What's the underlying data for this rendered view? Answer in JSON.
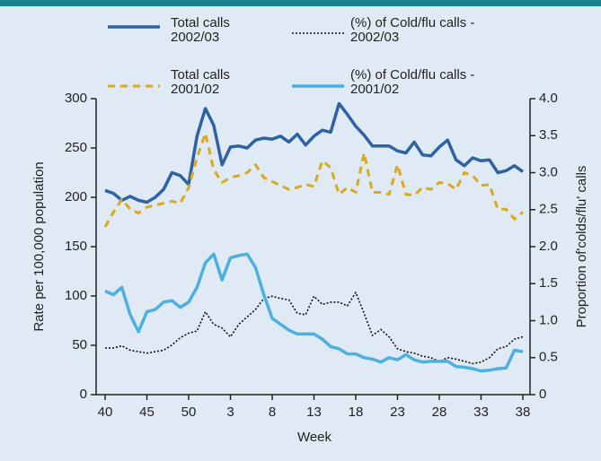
{
  "chart_data": {
    "type": "line",
    "x_label": "Week",
    "y_label": "Rate per 100,000 population",
    "y2_label": "Proportion of'colds/flu' calls",
    "categories": [
      "40",
      null,
      null,
      null,
      null,
      "45",
      null,
      null,
      null,
      null,
      "50",
      null,
      null,
      null,
      null,
      "3",
      null,
      null,
      null,
      null,
      "8",
      null,
      null,
      null,
      null,
      "13",
      null,
      null,
      null,
      null,
      "18",
      null,
      null,
      null,
      null,
      "23",
      null,
      null,
      null,
      null,
      "28",
      null,
      null,
      null,
      null,
      "33",
      null,
      null,
      null,
      null,
      "38"
    ],
    "ylim": [
      0,
      300
    ],
    "yticks": [
      0,
      50,
      100,
      150,
      200,
      250,
      300
    ],
    "y2lim": [
      0,
      4
    ],
    "y2ticks": [
      0,
      0.5,
      {
        "value": 1,
        "label": "1.0"
      },
      1.5,
      {
        "value": 2,
        "label": "2.0"
      },
      2.5,
      {
        "value": 3,
        "label": "3.0"
      },
      3.5,
      {
        "value": 4,
        "label": "4.0"
      }
    ],
    "series": [
      {
        "name": "Total calls 2002/03",
        "color": "#2f62a3",
        "line_style": "solid",
        "axis": "y",
        "values": [
          207,
          204,
          197,
          201,
          197,
          195,
          200,
          208,
          225,
          222,
          213,
          262,
          290,
          273,
          233,
          251,
          252,
          250,
          258,
          260,
          259,
          262,
          256,
          264,
          253,
          262,
          268,
          266,
          295,
          284,
          272,
          263,
          252,
          252,
          252,
          247,
          245,
          256,
          243,
          242,
          251,
          258,
          238,
          232,
          240,
          237,
          238,
          225,
          227,
          232,
          226
        ]
      },
      {
        "name": "(%) of Cold/flu calls - 2002/03",
        "color": "#111111",
        "line_style": "dotted",
        "axis": "y2",
        "values": [
          0.63,
          0.63,
          0.66,
          0.6,
          0.58,
          0.56,
          0.58,
          0.6,
          0.67,
          0.77,
          0.83,
          0.86,
          1.12,
          0.95,
          0.9,
          0.78,
          0.95,
          1.05,
          1.15,
          1.3,
          1.33,
          1.3,
          1.28,
          1.1,
          1.08,
          1.33,
          1.22,
          1.25,
          1.25,
          1.2,
          1.38,
          1.1,
          0.8,
          0.88,
          0.78,
          0.62,
          0.58,
          0.56,
          0.52,
          0.5,
          0.45,
          0.5,
          0.48,
          0.45,
          0.42,
          0.44,
          0.5,
          0.62,
          0.65,
          0.75,
          0.78
        ]
      },
      {
        "name": "Total calls 2001/02",
        "color": "#d9aa1f",
        "line_style": "dashed",
        "axis": "y",
        "values": [
          170,
          185,
          198,
          188,
          184,
          190,
          192,
          194,
          196,
          194,
          210,
          240,
          265,
          228,
          215,
          220,
          222,
          225,
          233,
          220,
          216,
          212,
          208,
          210,
          213,
          211,
          237,
          230,
          203,
          210,
          205,
          245,
          205,
          205,
          203,
          233,
          203,
          202,
          210,
          208,
          215,
          214,
          208,
          225,
          222,
          212,
          213,
          188,
          188,
          178,
          185
        ]
      },
      {
        "name": "(%) of Cold/flu calls - 2001/02",
        "color": "#4db0e0",
        "line_style": "solid",
        "axis": "y2",
        "values": [
          1.4,
          1.35,
          1.45,
          1.08,
          0.85,
          1.12,
          1.15,
          1.25,
          1.27,
          1.18,
          1.25,
          1.45,
          1.78,
          1.9,
          1.55,
          1.85,
          1.88,
          1.9,
          1.72,
          1.35,
          1.03,
          0.95,
          0.87,
          0.82,
          0.82,
          0.82,
          0.75,
          0.65,
          0.62,
          0.55,
          0.55,
          0.5,
          0.48,
          0.44,
          0.5,
          0.47,
          0.54,
          0.47,
          0.44,
          0.45,
          0.45,
          0.45,
          0.38,
          0.37,
          0.35,
          0.32,
          0.33,
          0.35,
          0.36,
          0.6,
          0.58
        ]
      }
    ]
  }
}
